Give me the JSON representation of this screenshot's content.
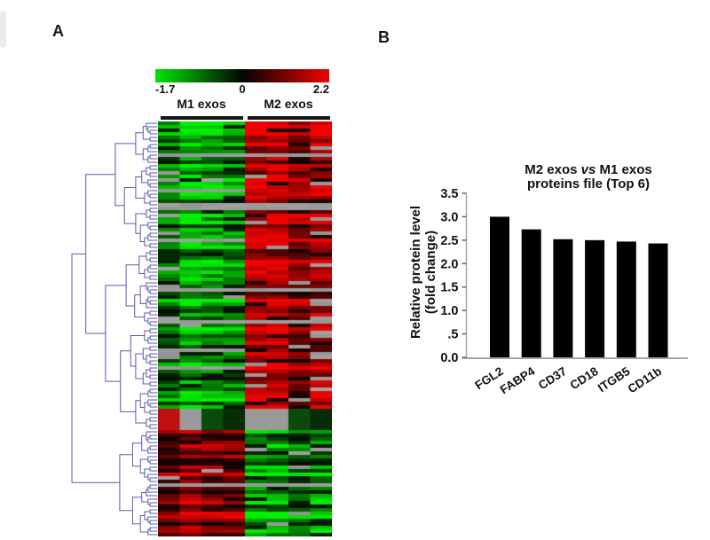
{
  "figure": {
    "panel_a_label": "A",
    "panel_b_label": "B"
  },
  "panel_a": {
    "colorbar": {
      "min_label": "-1.7",
      "mid_label": "0",
      "max_label": "2.2"
    },
    "group1_label": "M1 exos",
    "group2_label": "M2 exos"
  },
  "panel_b": {
    "title_pre": "M2 exos",
    "title_vs": "vs",
    "title_post": "M1 exos",
    "title_line2": "proteins file (Top 6)",
    "ylabel_line1": "Relative protein level",
    "ylabel_line2": "(fold change)"
  },
  "chart_data": [
    {
      "type": "heatmap",
      "panel": "A",
      "rows": 117,
      "columns": {
        "total": 8,
        "groups": [
          {
            "label": "M1 exos",
            "cols": 4
          },
          {
            "label": "M2 exos",
            "cols": 4
          }
        ]
      },
      "colorscale": {
        "min": -1.7,
        "mid": 0,
        "max": 2.2,
        "min_color": "#00e204",
        "mid_color": "#050505",
        "max_color": "#ee0404",
        "missing_color": "#9a9a9a"
      },
      "dendrogram": {
        "color": "#5b5bad",
        "root_split": 0.7436,
        "seed": 12
      },
      "pattern": {
        "seed": 7,
        "sections": [
          {
            "rows": [
              0,
              80
            ],
            "m1": "green",
            "m2": "red",
            "gray_row_chance": 0.08
          },
          {
            "rows": [
              81,
              86
            ],
            "cells": [
              "red",
              "gray",
              "dkgreen",
              "dkgreen_dark",
              "gray",
              "gray",
              "dkgreen",
              "dkgreen_dark"
            ]
          },
          {
            "rows": [
              87,
              116
            ],
            "m1": "red",
            "m2": "green",
            "gray_row_chance": 0.06
          }
        ]
      }
    },
    {
      "type": "bar",
      "panel": "B",
      "title": "M2 exos vs M1 exos proteins file (Top 6)",
      "categories": [
        "FGL2",
        "FABP4",
        "CD37",
        "CD18",
        "ITGB5",
        "CD11b"
      ],
      "values": [
        3.0,
        2.73,
        2.52,
        2.5,
        2.47,
        2.43
      ],
      "ylabel": "Relative protein level (fold change)",
      "ylim": [
        0,
        3.5
      ],
      "ytick_values": [
        0,
        0.5,
        1,
        1.5,
        2,
        2.5,
        3,
        3.5
      ],
      "ytick_labels": [
        "0.0",
        ".5",
        "1.0",
        "1.5",
        "2.0",
        "2.5",
        "3.0",
        "3.5"
      ],
      "bar_color": "#000000",
      "axis_color": "#a6a6a6",
      "grid": false,
      "legend_position": "none"
    }
  ]
}
